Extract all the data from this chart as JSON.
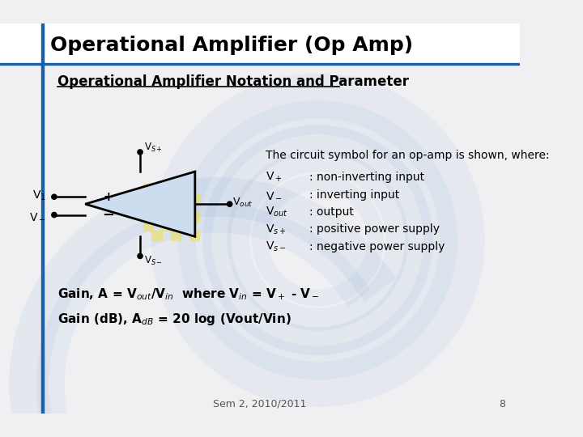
{
  "title": "Operational Amplifier (Op Amp)",
  "subtitle": "Operational Amplifier Notation and Parameter",
  "circuit_desc": "The circuit symbol for an op-amp is shown, where:",
  "definitions": [
    [
      "V$_+$",
      ": non-inverting input"
    ],
    [
      "V$_-$",
      ": inverting input"
    ],
    [
      "V$_{out}$",
      ": output"
    ],
    [
      "V$_{s+}$",
      ": positive power supply"
    ],
    [
      "V$_{s-}$",
      ": negative power supply"
    ]
  ],
  "gain_line1": "Gain, A = V$_{out}$/V$_{in}$  where V$_{in}$ = V$_+$ - V$_-$",
  "gain_line2": "Gain (dB), A$_{dB}$ = 20 log (Vout/Vin)",
  "footer_text": "Sem 2, 2010/2011",
  "page_number": "8",
  "bg_color": "#f0f0f2",
  "header_bg": "#ffffff",
  "blue_accent": "#1a5fa8"
}
